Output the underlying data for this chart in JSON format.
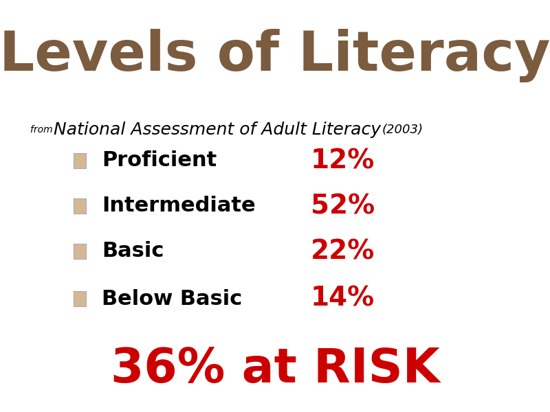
{
  "title": "Levels of Literacy",
  "title_color": "#7B5C3E",
  "title_fontsize": 58,
  "title_fontweight": "bold",
  "bar_color_orange": "#E07830",
  "bar_color_blue": "#A8BBCC",
  "subtitle_prefix": "from ",
  "subtitle_main": "National Assessment of Adult Literacy ",
  "subtitle_year": "(2003)",
  "subtitle_small_fontsize": 10,
  "subtitle_main_fontsize": 18,
  "subtitle_year_fontsize": 13,
  "items": [
    {
      "label": "Proficient",
      "value": "12%"
    },
    {
      "label": "Intermediate",
      "value": "52%"
    },
    {
      "label": "Basic",
      "value": "22%"
    },
    {
      "label": "Below Basic",
      "value": "14%"
    }
  ],
  "item_label_fontsize": 22,
  "item_value_fontsize": 28,
  "item_label_color": "#000000",
  "item_value_color": "#CC0000",
  "checkbox_color": "#D4B896",
  "risk_text": "36% at RISK",
  "risk_fontsize": 50,
  "risk_color": "#CC0000",
  "risk_fontweight": "bold",
  "bg_color": "#FFFFFF"
}
